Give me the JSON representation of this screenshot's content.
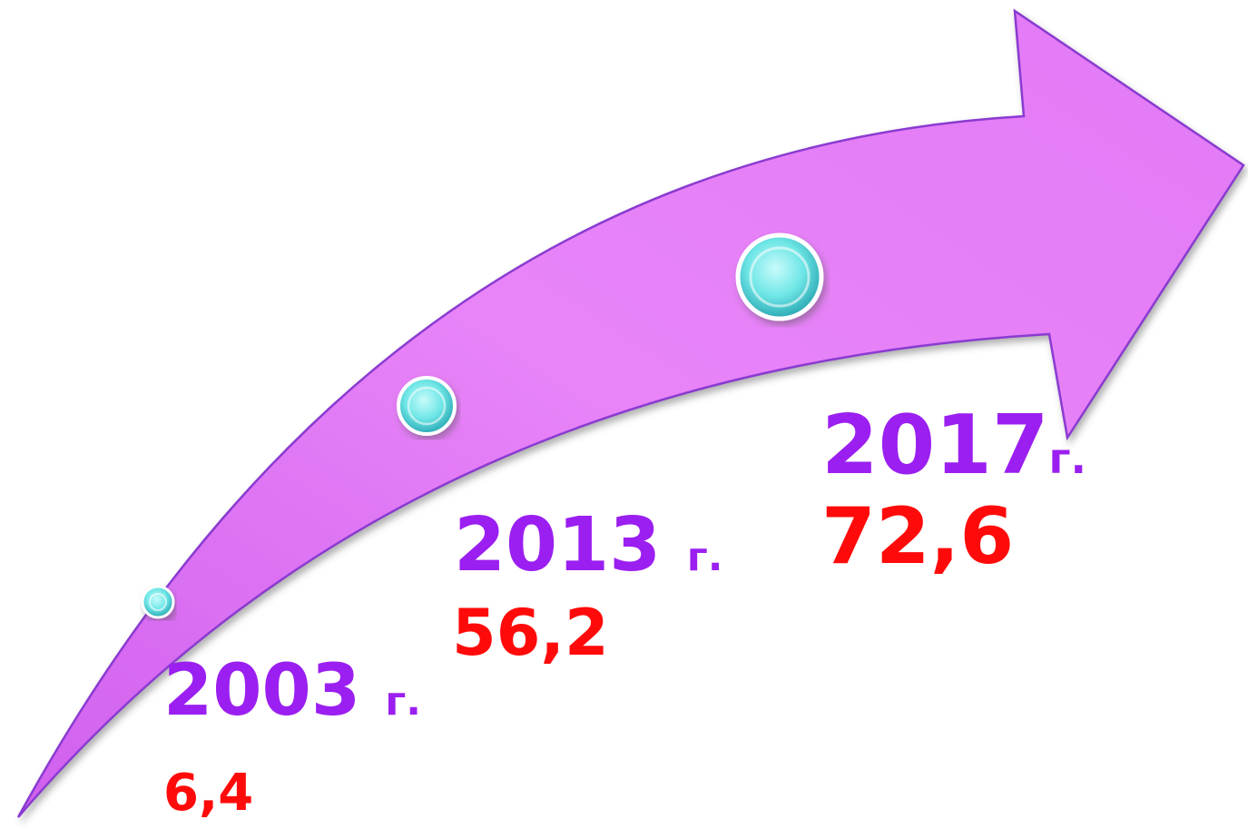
{
  "milestones": [
    {
      "year": "2003",
      "unit": "г.",
      "value": "6,4"
    },
    {
      "year": "2013",
      "unit": "г.",
      "value": "56,2"
    },
    {
      "year": "2017",
      "unit": "г.",
      "value": "72,6"
    }
  ],
  "colors": {
    "arrow_fill": "#e680f7",
    "arrow_edge": "#8a3ad0",
    "year": "#9b1ff0",
    "value": "#ff0a0a",
    "marker": "#5fe0e0"
  }
}
